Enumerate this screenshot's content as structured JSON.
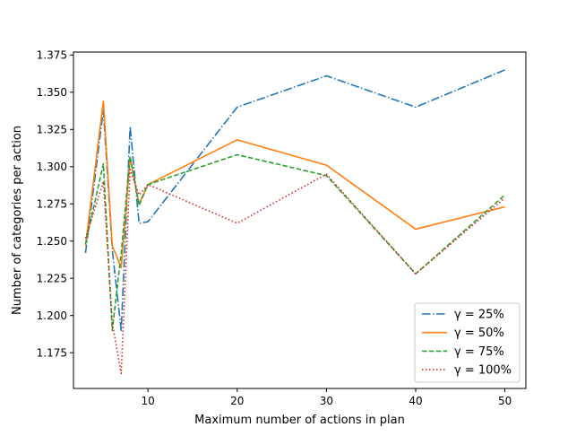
{
  "chart_data": {
    "type": "line",
    "title": "",
    "xlabel": "Maximum number of actions in plan",
    "ylabel": "Number of categories per action",
    "xlim": [
      1.65,
      52.35
    ],
    "ylim": [
      1.151,
      1.377
    ],
    "xticks": [
      10,
      20,
      30,
      40,
      50
    ],
    "xtick_labels": [
      "10",
      "20",
      "30",
      "40",
      "50"
    ],
    "yticks": [
      1.175,
      1.2,
      1.225,
      1.25,
      1.275,
      1.3,
      1.325,
      1.35,
      1.375
    ],
    "ytick_labels": [
      "1.175",
      "1.200",
      "1.225",
      "1.250",
      "1.275",
      "1.300",
      "1.325",
      "1.350",
      "1.375"
    ],
    "grid": false,
    "legend_position": "lower-right",
    "x": [
      3,
      5,
      6,
      7,
      8,
      9,
      10,
      20,
      30,
      40,
      50
    ],
    "series": [
      {
        "name": "γ = 25%",
        "color": "#1f77b4",
        "dash": "dashdot",
        "values": [
          1.242,
          1.338,
          1.244,
          1.19,
          1.327,
          1.262,
          1.263,
          1.34,
          1.361,
          1.34,
          1.365
        ]
      },
      {
        "name": "γ = 50%",
        "color": "#ff7f0e",
        "dash": "solid",
        "values": [
          1.247,
          1.344,
          1.247,
          1.232,
          1.306,
          1.275,
          1.288,
          1.318,
          1.301,
          1.258,
          1.273
        ]
      },
      {
        "name": "γ = 75%",
        "color": "#2ca02c",
        "dash": "dashed",
        "values": [
          1.248,
          1.302,
          1.19,
          1.242,
          1.307,
          1.274,
          1.288,
          1.308,
          1.294,
          1.228,
          1.281
        ]
      },
      {
        "name": "γ = 100%",
        "color": "#d62728",
        "dash": "dotted",
        "values": [
          1.252,
          1.29,
          1.195,
          1.161,
          1.298,
          1.281,
          1.288,
          1.262,
          1.295,
          1.228,
          1.279
        ]
      }
    ]
  }
}
